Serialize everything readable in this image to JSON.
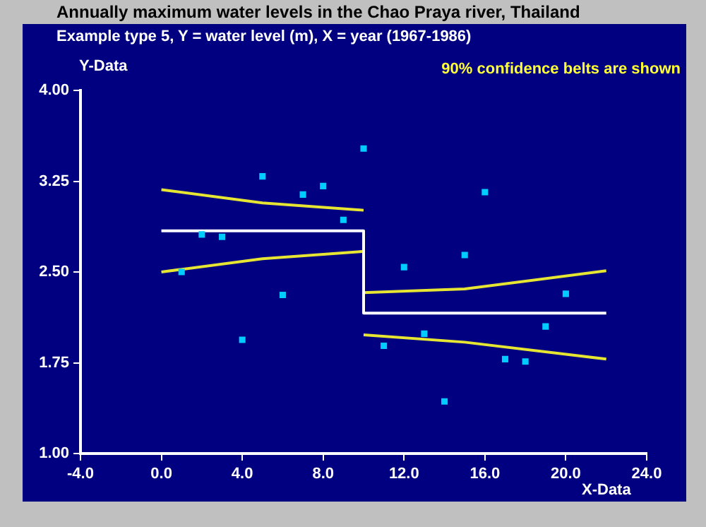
{
  "chart_data": {
    "type": "scatter",
    "title": "Annually maximum water levels in the Chao Praya river, Thailand",
    "subtitle": "Example type 5, Y = water level (m), X = year (1967-1986)",
    "xlabel": "X-Data",
    "ylabel": "Y-Data",
    "annotations": [
      "90% confidence belts are shown"
    ],
    "xlim": [
      -4,
      24
    ],
    "xticks": [
      {
        "value": -4,
        "label": "-4.0"
      },
      {
        "value": 0,
        "label": "0.0"
      },
      {
        "value": 4,
        "label": "4.0"
      },
      {
        "value": 8,
        "label": "8.0"
      },
      {
        "value": 12,
        "label": "12.0"
      },
      {
        "value": 16,
        "label": "16.0"
      },
      {
        "value": 20,
        "label": "20.0"
      },
      {
        "value": 24,
        "label": "24.0"
      }
    ],
    "ylim": [
      1,
      4
    ],
    "yticks": [
      {
        "value": 1,
        "label": "1.00"
      },
      {
        "value": 1.75,
        "label": "1.75"
      },
      {
        "value": 2.5,
        "label": "2.50"
      },
      {
        "value": 3.25,
        "label": "3.25"
      },
      {
        "value": 4,
        "label": "4.00"
      }
    ],
    "grid": false,
    "legend": false,
    "series": [
      {
        "color": "#00ccff",
        "marker": "square",
        "x": [
          1,
          2,
          3,
          4,
          5,
          6,
          7,
          8,
          9,
          10,
          11,
          12,
          13,
          14,
          15,
          16,
          17,
          18,
          19,
          20
        ],
        "values": [
          2.5,
          2.81,
          2.79,
          1.94,
          3.29,
          2.31,
          3.14,
          3.21,
          2.93,
          3.52,
          1.89,
          2.54,
          1.99,
          1.43,
          2.64,
          3.16,
          1.78,
          1.76,
          2.05,
          2.32
        ]
      },
      {
        "type": "line",
        "color": "#ffffff",
        "marker": "none",
        "x": [
          0,
          10,
          10,
          22
        ],
        "values": [
          2.84,
          2.84,
          2.16,
          2.16
        ]
      },
      {
        "type": "line",
        "color": "#e6e632",
        "marker": "none",
        "x": [
          0,
          5,
          10
        ],
        "values": [
          3.18,
          3.07,
          3.01
        ]
      },
      {
        "type": "line",
        "color": "#e6e632",
        "marker": "none",
        "x": [
          0,
          5,
          10
        ],
        "values": [
          2.5,
          2.61,
          2.67
        ]
      },
      {
        "type": "line",
        "color": "#e6e632",
        "marker": "none",
        "x": [
          10,
          15,
          22
        ],
        "values": [
          2.33,
          2.36,
          2.51
        ]
      },
      {
        "type": "line",
        "color": "#e6e632",
        "marker": "none",
        "x": [
          10,
          15,
          22
        ],
        "values": [
          1.98,
          1.92,
          1.78
        ]
      }
    ]
  }
}
